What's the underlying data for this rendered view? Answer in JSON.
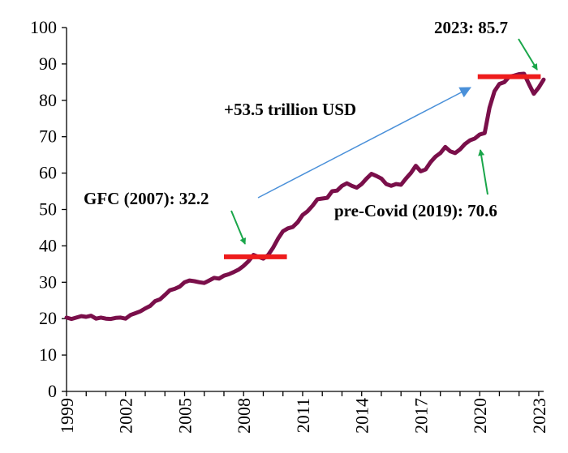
{
  "chart_data": {
    "type": "line",
    "title": "",
    "xlabel": "",
    "ylabel": "",
    "ylim": [
      0,
      100
    ],
    "yticks": [
      0,
      10,
      20,
      30,
      40,
      50,
      60,
      70,
      80,
      90,
      100
    ],
    "xlim": [
      1999,
      2023.25
    ],
    "xticks": [
      "1999",
      "2002",
      "2005",
      "2008",
      "2011",
      "2014",
      "2017",
      "2020",
      "2023"
    ],
    "grid": false,
    "legend": "none",
    "series": [
      {
        "name": "",
        "color": "#7a0f4a",
        "points": [
          [
            1999.0,
            20.3
          ],
          [
            1999.25,
            19.9
          ],
          [
            1999.5,
            20.3
          ],
          [
            1999.75,
            20.7
          ],
          [
            2000.0,
            20.5
          ],
          [
            2000.25,
            20.8
          ],
          [
            2000.5,
            20.0
          ],
          [
            2000.75,
            20.3
          ],
          [
            2001.0,
            20.0
          ],
          [
            2001.25,
            19.9
          ],
          [
            2001.5,
            20.2
          ],
          [
            2001.75,
            20.3
          ],
          [
            2002.0,
            20.0
          ],
          [
            2002.25,
            21.0
          ],
          [
            2002.5,
            21.5
          ],
          [
            2002.75,
            22.0
          ],
          [
            2003.0,
            22.8
          ],
          [
            2003.25,
            23.5
          ],
          [
            2003.5,
            24.8
          ],
          [
            2003.75,
            25.3
          ],
          [
            2004.0,
            26.5
          ],
          [
            2004.25,
            27.8
          ],
          [
            2004.5,
            28.2
          ],
          [
            2004.75,
            28.8
          ],
          [
            2005.0,
            30.0
          ],
          [
            2005.25,
            30.5
          ],
          [
            2005.5,
            30.3
          ],
          [
            2005.75,
            30.0
          ],
          [
            2006.0,
            29.8
          ],
          [
            2006.25,
            30.5
          ],
          [
            2006.5,
            31.2
          ],
          [
            2006.75,
            31.0
          ],
          [
            2007.0,
            31.8
          ],
          [
            2007.25,
            32.2
          ],
          [
            2007.5,
            32.8
          ],
          [
            2007.75,
            33.5
          ],
          [
            2008.0,
            34.5
          ],
          [
            2008.25,
            35.8
          ],
          [
            2008.5,
            37.5
          ],
          [
            2008.75,
            37.0
          ],
          [
            2009.0,
            36.5
          ],
          [
            2009.25,
            37.5
          ],
          [
            2009.5,
            39.5
          ],
          [
            2009.75,
            42.0
          ],
          [
            2010.0,
            44.0
          ],
          [
            2010.25,
            44.8
          ],
          [
            2010.5,
            45.2
          ],
          [
            2010.75,
            46.5
          ],
          [
            2011.0,
            48.5
          ],
          [
            2011.25,
            49.5
          ],
          [
            2011.5,
            51.0
          ],
          [
            2011.75,
            52.8
          ],
          [
            2012.0,
            53.0
          ],
          [
            2012.25,
            53.2
          ],
          [
            2012.5,
            55.0
          ],
          [
            2012.75,
            55.2
          ],
          [
            2013.0,
            56.5
          ],
          [
            2013.25,
            57.2
          ],
          [
            2013.5,
            56.5
          ],
          [
            2013.75,
            56.0
          ],
          [
            2014.0,
            57.0
          ],
          [
            2014.25,
            58.5
          ],
          [
            2014.5,
            59.8
          ],
          [
            2014.75,
            59.2
          ],
          [
            2015.0,
            58.5
          ],
          [
            2015.25,
            57.0
          ],
          [
            2015.5,
            56.5
          ],
          [
            2015.75,
            57.0
          ],
          [
            2016.0,
            56.8
          ],
          [
            2016.25,
            58.5
          ],
          [
            2016.5,
            60.0
          ],
          [
            2016.75,
            62.0
          ],
          [
            2017.0,
            60.5
          ],
          [
            2017.25,
            61.0
          ],
          [
            2017.5,
            63.0
          ],
          [
            2017.75,
            64.5
          ],
          [
            2018.0,
            65.5
          ],
          [
            2018.25,
            67.2
          ],
          [
            2018.5,
            66.0
          ],
          [
            2018.75,
            65.5
          ],
          [
            2019.0,
            66.5
          ],
          [
            2019.25,
            68.0
          ],
          [
            2019.5,
            69.0
          ],
          [
            2019.75,
            69.5
          ],
          [
            2020.0,
            70.6
          ],
          [
            2020.25,
            71.0
          ],
          [
            2020.5,
            78.0
          ],
          [
            2020.75,
            82.5
          ],
          [
            2021.0,
            84.5
          ],
          [
            2021.25,
            85.0
          ],
          [
            2021.5,
            86.5
          ],
          [
            2021.75,
            86.8
          ],
          [
            2022.0,
            87.2
          ],
          [
            2022.25,
            87.3
          ],
          [
            2022.5,
            84.5
          ],
          [
            2022.75,
            81.8
          ],
          [
            2023.0,
            83.5
          ],
          [
            2023.25,
            85.7
          ]
        ]
      }
    ],
    "markers": [
      {
        "name": "GFC level",
        "x": [
          2007.0,
          2010.2
        ],
        "y": 37.0,
        "color": "#ee1c1c"
      },
      {
        "name": "2023 level",
        "x": [
          2019.9,
          2023.1
        ],
        "y": 86.5,
        "color": "#ee1c1c"
      }
    ],
    "annotations": {
      "gfc": "GFC (2007): 32.2",
      "precovid": "pre-Covid (2019): 70.6",
      "latest": "2023: 85.7",
      "increase": "+53.5 trillion USD"
    },
    "annotation_colors": {
      "green_arrow": "#1aa64a",
      "blue_arrow": "#4a90d9"
    }
  }
}
